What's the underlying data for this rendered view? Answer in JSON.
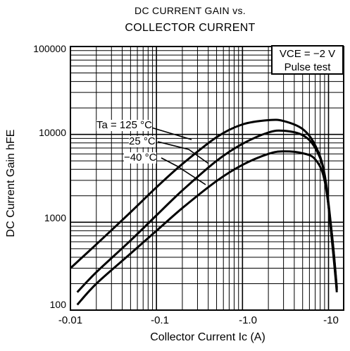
{
  "chart_data": {
    "type": "line",
    "title": "DC CURRENT GAIN vs.",
    "subtitle": "COLLECTOR CURRENT",
    "xlabel": "Collector Current  Ic  (A)",
    "ylabel": "DC Current Gain  hFE",
    "x_scale": "log",
    "y_scale": "log",
    "xlim": [
      -0.01,
      -15
    ],
    "ylim": [
      100,
      100000
    ],
    "x_tick_labels": [
      "-0.01",
      "-0.1",
      "-1.0",
      "-10"
    ],
    "x_tick_values": [
      0.01,
      0.1,
      1.0,
      10
    ],
    "y_tick_labels": [
      "100000",
      "10000",
      "1000",
      "100"
    ],
    "y_tick_values": [
      100000,
      10000,
      1000,
      100
    ],
    "grid": true,
    "conditions": [
      "VCE = −2 V",
      "Pulse test"
    ],
    "series": [
      {
        "name": "Ta = 125 °C",
        "x": [
          -0.01,
          -0.02,
          -0.05,
          -0.1,
          -0.2,
          -0.5,
          -1.0,
          -2.0,
          -3.0,
          -5.0,
          -7.0,
          -9.0,
          -11.0,
          -12.5
        ],
        "y": [
          300,
          560,
          1300,
          2500,
          4600,
          9300,
          13000,
          14500,
          14200,
          11500,
          7500,
          3500,
          600,
          160
        ]
      },
      {
        "name": "25 °C",
        "x": [
          -0.012,
          -0.02,
          -0.05,
          -0.1,
          -0.2,
          -0.5,
          -1.0,
          -2.0,
          -3.0,
          -5.0,
          -7.0,
          -9.0,
          -11.0,
          -12.5
        ],
        "y": [
          160,
          270,
          620,
          1200,
          2300,
          5000,
          7800,
          10500,
          11000,
          9800,
          7000,
          3500,
          700,
          170
        ]
      },
      {
        "name": "−40 °C",
        "x": [
          -0.012,
          -0.02,
          -0.05,
          -0.1,
          -0.2,
          -0.5,
          -1.0,
          -2.0,
          -3.0,
          -5.0,
          -7.0,
          -9.0,
          -11.0,
          -12.5
        ],
        "y": [
          115,
          200,
          440,
          800,
          1450,
          2950,
          4500,
          6000,
          6400,
          6100,
          5200,
          3000,
          700,
          180
        ]
      }
    ]
  }
}
